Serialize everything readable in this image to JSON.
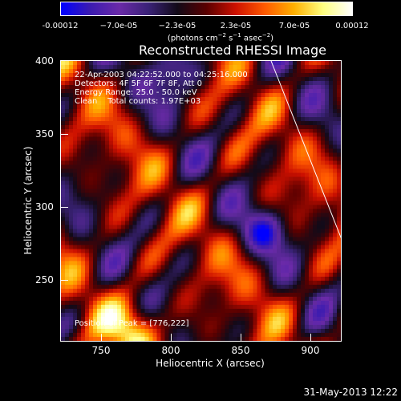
{
  "colorbar": {
    "ticks": [
      "-0.00012",
      "−7.0e-05",
      "−2.3e-05",
      "2.3e-05",
      "7.0e-05",
      "0.00012"
    ],
    "units_main": "(photons cm",
    "units_sup1": "−2",
    "units_mid": " s",
    "units_sup2": "−1",
    "units_mid2": " asec",
    "units_sup3": "−2",
    "units_end": ")"
  },
  "title": "Reconstructed RHESSI Image",
  "info": {
    "line1": "22-Apr-2003 04:22:52.000 to 04:25:16.000",
    "line2": "Detectors: 4F 5F 6F 7F 8F, Att 0",
    "line3": "Energy Range: 25.0 - 50.0 keV",
    "line4": "Clean    Total counts: 1.97E+03",
    "peak": "Position of Peak = [776,222]"
  },
  "axes": {
    "xlabel": "Heliocentric X (arcsec)",
    "ylabel": "Heliocentric Y (arcsec)",
    "xticks": [
      "750",
      "800",
      "850",
      "900"
    ],
    "yticks": [
      "400",
      "350",
      "300",
      "250"
    ]
  },
  "footer_date": "31-May-2013 12:22",
  "colors": {
    "colormap": [
      "#0000ff",
      "#3b1bb0",
      "#6a2aa8",
      "#3a2277",
      "#120a18",
      "#5a0000",
      "#cc1000",
      "#ff5a00",
      "#ffb000",
      "#ffff80",
      "#ffffff"
    ]
  }
}
